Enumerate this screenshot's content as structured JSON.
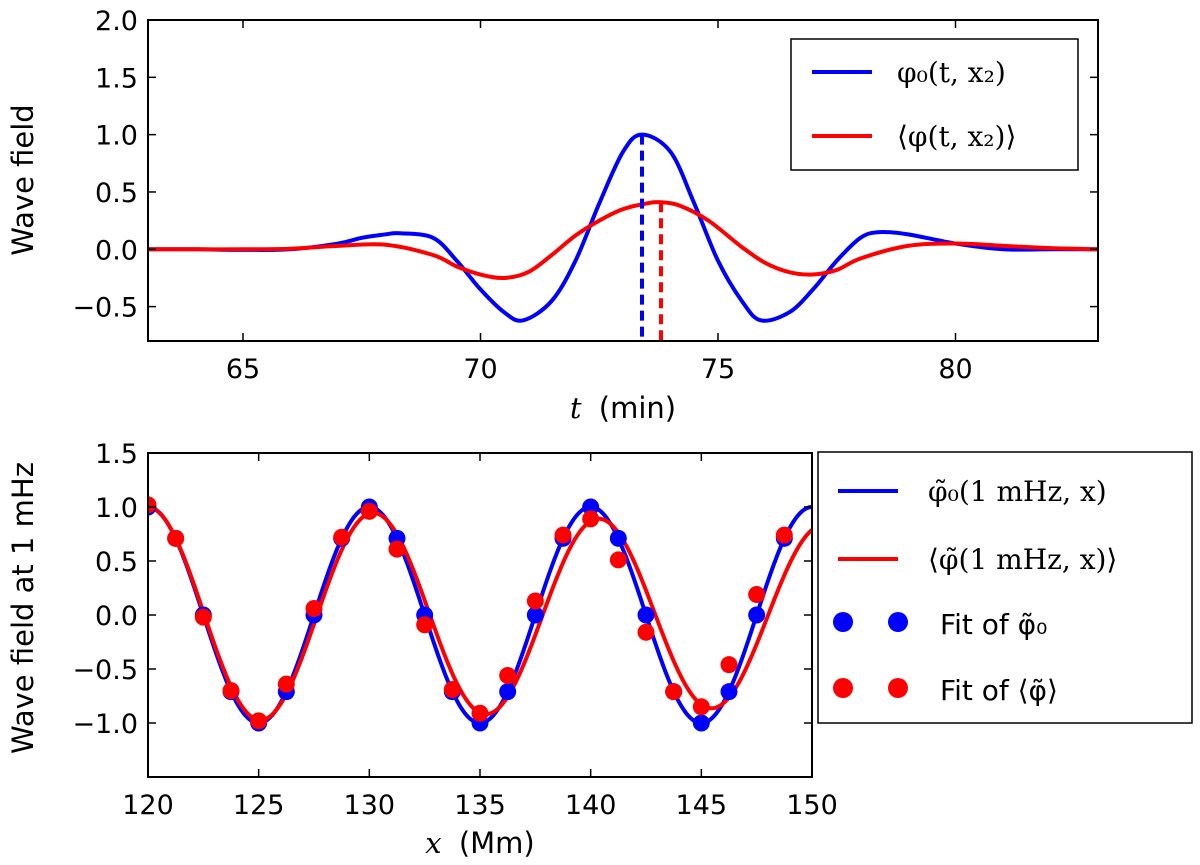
{
  "chart_data": [
    {
      "type": "line",
      "xlabel_var": "t",
      "xlabel_unit": "(min)",
      "ylabel": "Wave field",
      "xlim": [
        63,
        83
      ],
      "ylim": [
        -0.8,
        2.0
      ],
      "xticks": [
        "65",
        "70",
        "75",
        "80"
      ],
      "xtick_values": [
        65,
        70,
        75,
        80
      ],
      "yticks": [
        "2.0",
        "1.5",
        "1.0",
        "0.5",
        "0.0",
        "−0.5"
      ],
      "ytick_values": [
        2.0,
        1.5,
        1.0,
        0.5,
        0.0,
        -0.5
      ],
      "legend_position": "top-right",
      "series": [
        {
          "name": "φ₀(t, x₂)",
          "color": "#0000ff",
          "x": [
            63,
            64,
            65,
            66,
            67,
            67.5,
            68,
            68.3,
            69,
            69.5,
            70,
            70.5,
            70.9,
            71.5,
            72,
            72.5,
            73,
            73.4,
            74,
            74.5,
            75,
            75.5,
            75.9,
            76.5,
            77,
            77.5,
            78,
            78.4,
            79,
            80,
            81,
            82,
            83
          ],
          "y": [
            0.0,
            0.0,
            -0.005,
            0.0,
            0.05,
            0.1,
            0.13,
            0.14,
            0.1,
            -0.1,
            -0.35,
            -0.55,
            -0.62,
            -0.45,
            -0.1,
            0.4,
            0.85,
            1.0,
            0.85,
            0.4,
            -0.1,
            -0.45,
            -0.62,
            -0.55,
            -0.35,
            -0.1,
            0.1,
            0.15,
            0.13,
            0.05,
            0.0,
            0.0,
            0.0
          ]
        },
        {
          "name": "⟨φ(t, x₂)⟩",
          "color": "#ff0000",
          "x": [
            63,
            64,
            65,
            66,
            67,
            68,
            69,
            69.5,
            70,
            70.5,
            71,
            71.5,
            72,
            72.5,
            73,
            73.5,
            73.8,
            74.2,
            74.8,
            75.5,
            76,
            76.5,
            77,
            77.5,
            78,
            79,
            80,
            81,
            82,
            83
          ],
          "y": [
            0.0,
            0.0,
            0.0,
            0.005,
            0.03,
            0.04,
            -0.05,
            -0.15,
            -0.22,
            -0.25,
            -0.2,
            -0.05,
            0.12,
            0.25,
            0.35,
            0.4,
            0.41,
            0.38,
            0.25,
            0.02,
            -0.12,
            -0.2,
            -0.22,
            -0.18,
            -0.08,
            0.03,
            0.05,
            0.03,
            0.01,
            0.0
          ]
        }
      ],
      "vlines": [
        {
          "x": 73.4,
          "ymax": 1.0,
          "color": "#0000ff"
        },
        {
          "x": 73.8,
          "ymax": 0.41,
          "color": "#ff0000"
        }
      ]
    },
    {
      "type": "line",
      "xlabel_var": "x",
      "xlabel_unit": "(Mm)",
      "ylabel": "Wave field at 1 mHz",
      "xlim": [
        120,
        150
      ],
      "ylim": [
        -1.5,
        1.5
      ],
      "xticks": [
        "120",
        "125",
        "130",
        "135",
        "140",
        "145",
        "150"
      ],
      "xtick_values": [
        120,
        125,
        130,
        135,
        140,
        145,
        150
      ],
      "yticks": [
        "1.5",
        "1.0",
        "0.5",
        "0.0",
        "−0.5",
        "−1.0"
      ],
      "ytick_values": [
        1.5,
        1.0,
        0.5,
        0.0,
        -0.5,
        -1.0
      ],
      "legend_position": "right-outside",
      "series": [
        {
          "name": "φ̃₀(1 mHz, x)",
          "kind": "line",
          "color": "#0000ff",
          "wavelength": 10,
          "amplitude_start": 1.0,
          "amplitude_end": 1.0,
          "phase_shift": 0.0
        },
        {
          "name": "⟨φ̃(1 mHz, x)⟩",
          "kind": "line",
          "color": "#ff0000",
          "wavelength": 10,
          "amplitude_start": 1.0,
          "amplitude_end": 0.84,
          "phase_shift": -0.35
        },
        {
          "name": "Fit of φ̃₀",
          "kind": "points",
          "color": "#0000ff",
          "x": [
            120,
            121.25,
            122.5,
            123.75,
            125,
            126.25,
            127.5,
            128.75,
            130,
            131.25,
            132.5,
            133.75,
            135,
            136.25,
            137.5,
            138.75,
            140,
            141.25,
            142.5,
            143.75,
            145,
            146.25,
            147.5,
            148.75
          ],
          "y": [
            1.0,
            0.71,
            0.0,
            -0.71,
            -1.0,
            -0.71,
            0.0,
            0.71,
            1.0,
            0.71,
            0.0,
            -0.71,
            -1.0,
            -0.71,
            0.0,
            0.71,
            1.0,
            0.71,
            0.0,
            -0.71,
            -1.0,
            -0.71,
            0.0,
            0.71
          ]
        },
        {
          "name": "Fit of ⟨φ̃⟩",
          "kind": "points",
          "color": "#ff0000",
          "x": [
            120,
            121.25,
            122.5,
            123.75,
            125,
            126.25,
            127.5,
            128.75,
            130,
            131.25,
            132.5,
            133.75,
            135,
            136.25,
            137.5,
            138.75,
            140,
            141.25,
            142.5,
            143.75,
            145,
            146.25,
            147.5,
            148.75
          ],
          "y": [
            1.02,
            0.71,
            -0.02,
            -0.7,
            -0.98,
            -0.64,
            0.06,
            0.72,
            0.96,
            0.61,
            -0.09,
            -0.69,
            -0.91,
            -0.56,
            0.13,
            0.74,
            0.89,
            0.51,
            -0.16,
            -0.71,
            -0.85,
            -0.46,
            0.19,
            0.74
          ]
        }
      ]
    }
  ]
}
